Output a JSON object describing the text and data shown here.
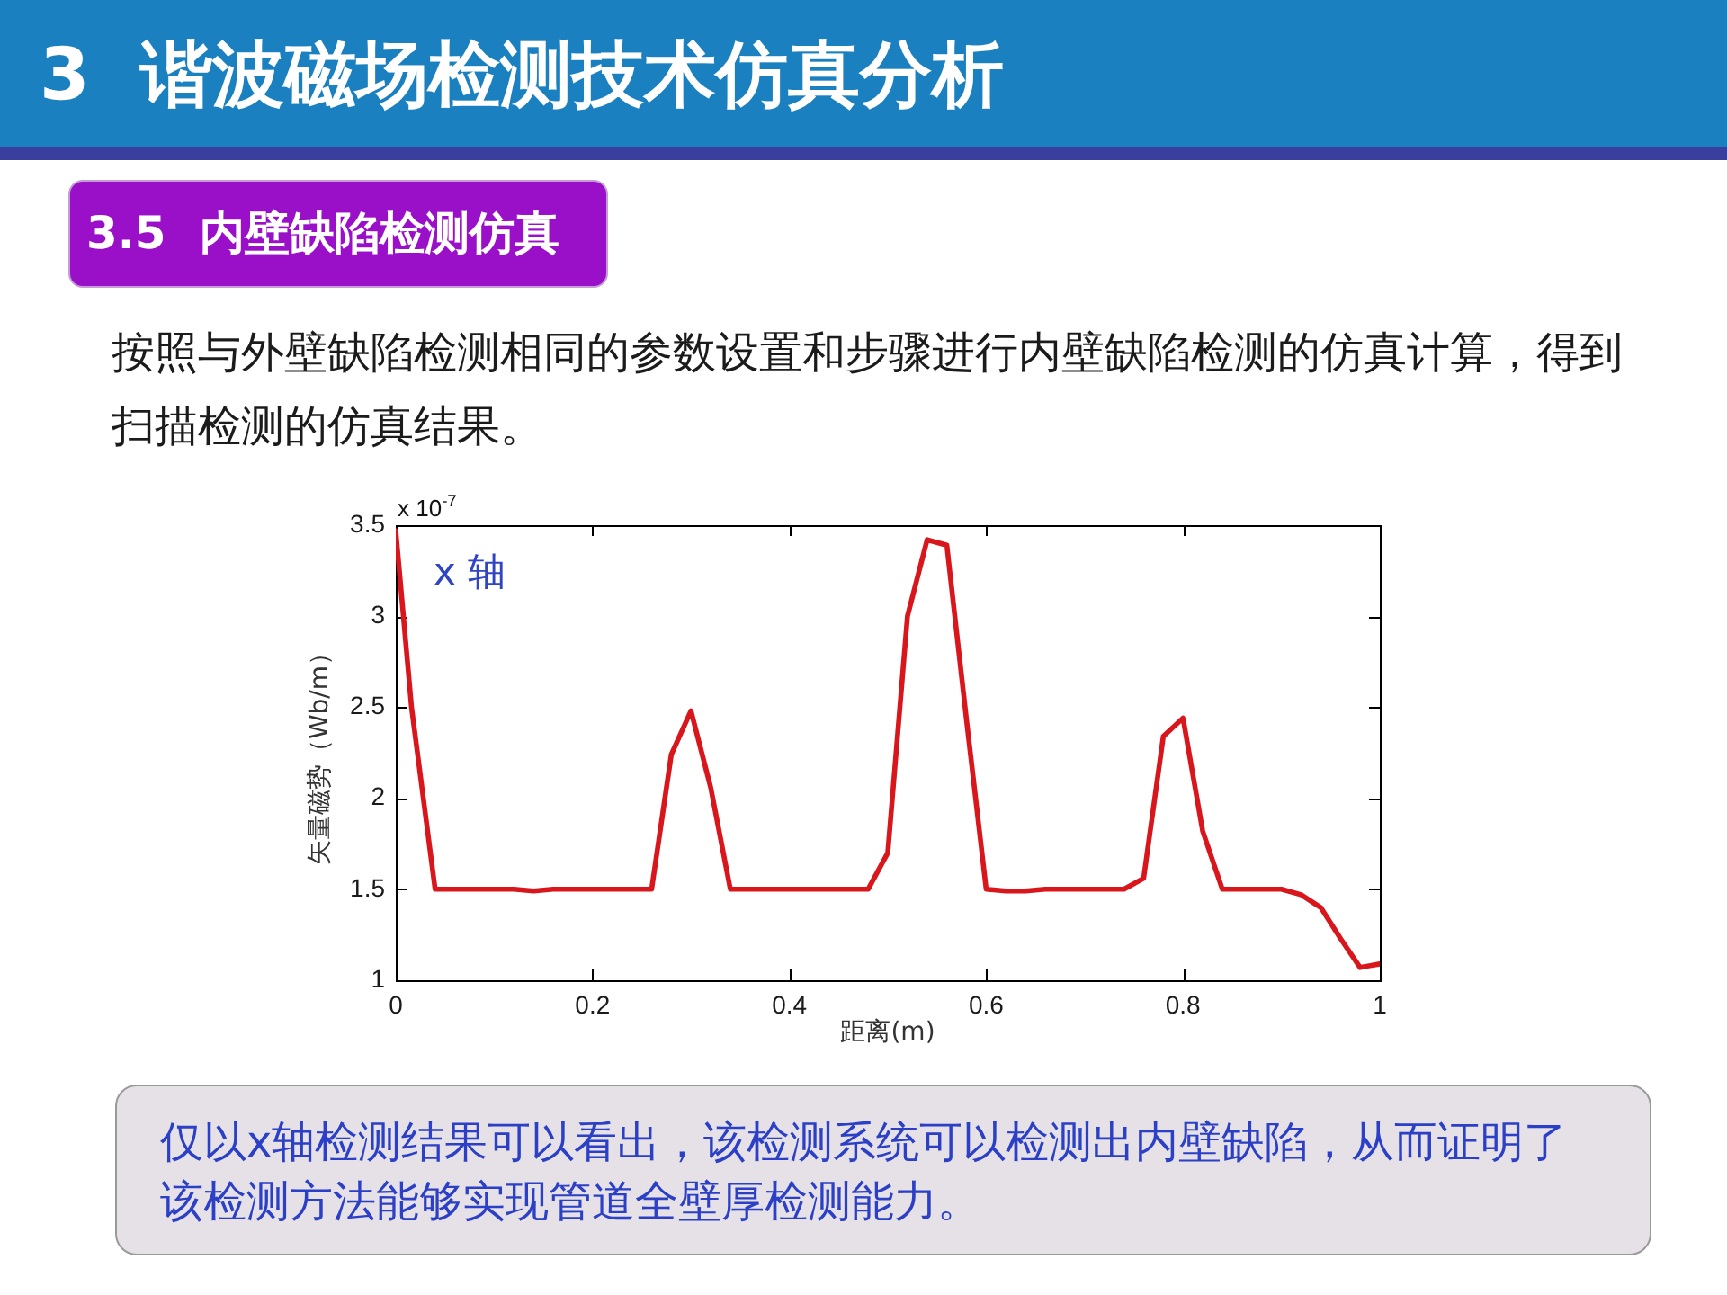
{
  "chart_data": {
    "type": "line",
    "title": "3 谐波磁场检测技术仿真分析",
    "subtitle": "3.5 内壁缺陷检测仿真",
    "xlabel": "距离(m)",
    "ylabel": "矢量磁势（Wb/m）",
    "annotations": [
      "按照与外壁缺陷检测相同的参数设置和步骤进行内壁缺陷检测的仿真计算，得到扫描检测的仿真结果。",
      "x 10$^{-7}$",
      "x 轴",
      "仅以x轴检测结果可以看出，该检测系统可以检测出内壁缺陷，从而证明了该检测方法能够实现管道全壁厚检测能力。"
    ],
    "x": [
      0,
      0.016,
      0.04,
      0.06,
      0.08,
      0.1,
      0.12,
      0.14,
      0.16,
      0.18,
      0.2,
      0.22,
      0.24,
      0.26,
      0.28,
      0.3,
      0.32,
      0.34,
      0.36,
      0.38,
      0.4,
      0.42,
      0.44,
      0.46,
      0.48,
      0.5,
      0.52,
      0.54,
      0.56,
      0.58,
      0.6,
      0.62,
      0.64,
      0.66,
      0.68,
      0.7,
      0.72,
      0.74,
      0.76,
      0.78,
      0.8,
      0.82,
      0.84,
      0.86,
      0.88,
      0.9,
      0.92,
      0.94,
      0.96,
      0.98,
      1
    ],
    "series": [
      {
        "color": "#d9161c",
        "values": [
          3.47,
          2.5,
          1.5,
          1.5,
          1.5,
          1.5,
          1.5,
          1.49,
          1.5,
          1.5,
          1.5,
          1.5,
          1.5,
          1.5,
          2.24,
          2.48,
          2.06,
          1.5,
          1.5,
          1.5,
          1.5,
          1.5,
          1.5,
          1.5,
          1.5,
          1.7,
          3.0,
          3.42,
          3.39,
          2.43,
          1.5,
          1.49,
          1.49,
          1.5,
          1.5,
          1.5,
          1.5,
          1.5,
          1.56,
          2.34,
          2.44,
          1.82,
          1.5,
          1.5,
          1.5,
          1.5,
          1.47,
          1.4,
          1.23,
          1.07,
          1.09
        ]
      }
    ],
    "xlim": [
      0,
      1
    ],
    "xticks": [
      0,
      0.2,
      0.4,
      0.6,
      0.8,
      1
    ],
    "ylim": [
      1,
      3.5
    ],
    "yticks": [
      1,
      1.5,
      2,
      2.5,
      3,
      3.5
    ]
  }
}
